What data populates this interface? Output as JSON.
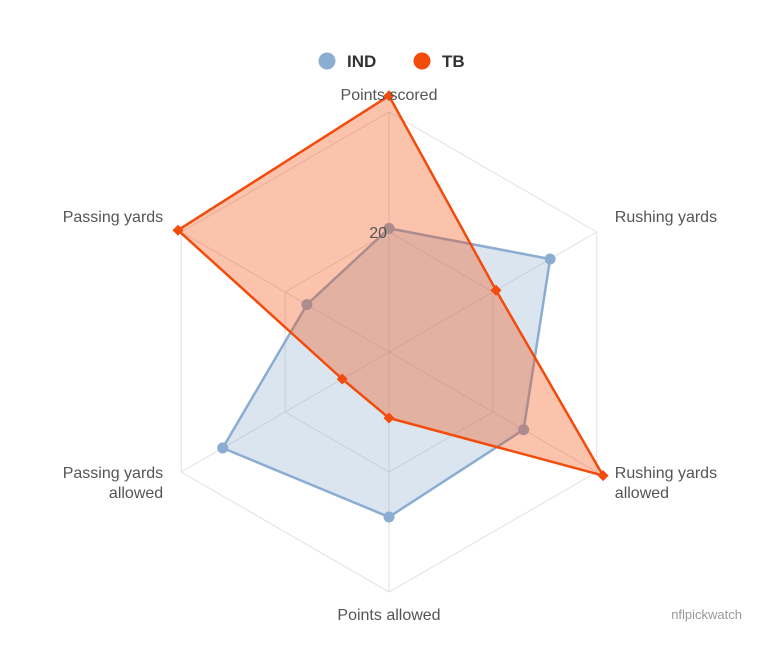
{
  "chart_data": {
    "type": "radar",
    "axes": [
      [
        "Points scored"
      ],
      [
        "Rushing yards"
      ],
      [
        "Rushing yards",
        "allowed"
      ],
      [
        "Points allowed"
      ],
      [
        "Passing yards",
        "allowed"
      ],
      [
        "Passing yards"
      ]
    ],
    "series": [
      {
        "name": "IND",
        "color": "#8badd1",
        "marker": "circle",
        "values": [
          20.6,
          31.0,
          25.9,
          27.5,
          32.0,
          15.8
        ]
      },
      {
        "name": "TB",
        "color": "#f24b0c",
        "marker": "diamond",
        "values": [
          42.7,
          20.6,
          41.2,
          11.0,
          9.0,
          40.6
        ]
      }
    ],
    "tick_labels": [
      "20"
    ],
    "rmax": 40,
    "legend_position": "top",
    "grid": "polygon"
  },
  "credit": "nflpickwatch"
}
